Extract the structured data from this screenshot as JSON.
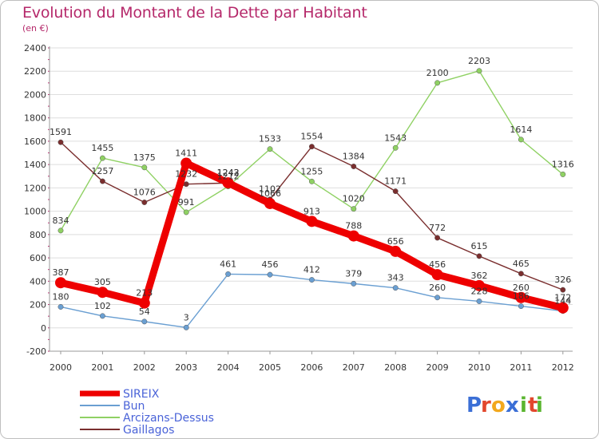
{
  "header": {
    "title": "Evolution du Montant de la Dette par Habitant",
    "subtitle": "(en €)"
  },
  "logo": {
    "text": "Proxiti",
    "colors": [
      "#3b6fd6",
      "#e2472d",
      "#f2a81d",
      "#3b6fd6",
      "#5ab52f",
      "#e2472d",
      "#5ab52f"
    ]
  },
  "chart_data": {
    "type": "line",
    "title": "Evolution du Montant de la Dette par Habitant",
    "subtitle": "(en €)",
    "xlabel": "",
    "ylabel": "",
    "x": [
      "2000",
      "2001",
      "2002",
      "2003",
      "2004",
      "2005",
      "2006",
      "2007",
      "2008",
      "2009",
      "2010",
      "2011",
      "2012"
    ],
    "ylim": [
      -200,
      2400
    ],
    "yticks": [
      "-200",
      "0",
      "200",
      "400",
      "600",
      "800",
      "1000",
      "1200",
      "1400",
      "1600",
      "1800",
      "2000",
      "2200",
      "2400"
    ],
    "grid": "horizontal",
    "legend_position": "bottom-left",
    "series": [
      {
        "name": "SIREIX",
        "color": "#ee0000",
        "values": [
          387,
          305,
          213,
          1411,
          1243,
          1066,
          913,
          788,
          656,
          456,
          362,
          260,
          172
        ],
        "labels": [
          "387",
          "305",
          "213",
          "1411",
          "1243",
          "1066",
          "913",
          "788",
          "656",
          "456",
          "362",
          "260",
          "172"
        ]
      },
      {
        "name": "Bun",
        "color": "#6a9fd2",
        "values": [
          180,
          102,
          54,
          3,
          461,
          456,
          412,
          379,
          343,
          260,
          228,
          186,
          144
        ],
        "labels": [
          "180",
          "102",
          "54",
          "3",
          "461",
          "456",
          "412",
          "379",
          "343",
          "260",
          "228",
          "186",
          "144"
        ]
      },
      {
        "name": "Arcizans-Dessus",
        "color": "#8fd163",
        "values": [
          834,
          1455,
          1375,
          991,
          1212,
          1533,
          1255,
          1020,
          1543,
          2100,
          2203,
          1614,
          1316
        ],
        "labels": [
          "834",
          "1455",
          "1375",
          "991",
          "1212",
          "1533",
          "1255",
          "1020",
          "1543",
          "2100",
          "2203",
          "1614",
          "1316"
        ]
      },
      {
        "name": "Gaillagos",
        "color": "#7a2e2e",
        "values": [
          1591,
          1257,
          1076,
          1232,
          1242,
          1102,
          1554,
          1384,
          1171,
          772,
          615,
          465,
          326
        ],
        "labels": [
          "1591",
          "1257",
          "1076",
          "1232",
          "1242",
          "1102",
          "1554",
          "1384",
          "1171",
          "772",
          "615",
          "465",
          "326"
        ]
      }
    ]
  }
}
